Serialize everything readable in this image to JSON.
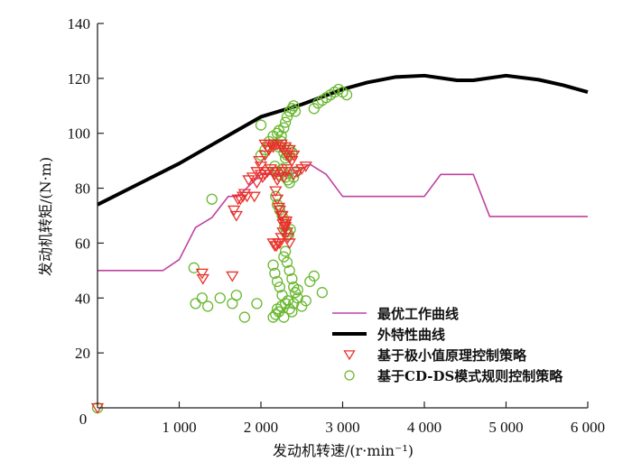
{
  "chart_data": {
    "type": "scatter",
    "title": "",
    "xlabel": "发动机转速/(r·min⁻¹)",
    "ylabel": "发动机转矩/(N·m)",
    "xlim": [
      0,
      6000
    ],
    "ylim": [
      0,
      140
    ],
    "x_ticks": [
      1000,
      2000,
      3000,
      4000,
      5000,
      6000
    ],
    "x_tick_labels": [
      "1 000",
      "2 000",
      "3 000",
      "4 000",
      "5 000",
      "6 000"
    ],
    "origin_label": "0",
    "y_ticks": [
      20,
      40,
      60,
      80,
      100,
      120,
      140
    ],
    "y_tick_labels": [
      "20",
      "40",
      "60",
      "80",
      "100",
      "120",
      "140"
    ],
    "grid": false,
    "legend_position": "bottom-right",
    "colors": {
      "optimal": "#c040a0",
      "external": "#000000",
      "min_principle": "#e8302a",
      "cdds": "#6ab830"
    },
    "series": [
      {
        "name": "最优工作曲线",
        "kind": "line",
        "color_key": "optimal",
        "x": [
          0,
          800,
          1000,
          1200,
          1400,
          1600,
          1720,
          2000,
          2380,
          2600,
          2800,
          3000,
          4000,
          4200,
          4600,
          4800,
          6000
        ],
        "y": [
          50,
          50,
          54,
          65.7,
          69.3,
          77,
          77,
          85,
          85,
          88.7,
          85,
          77,
          77,
          85,
          85,
          69.7,
          69.7
        ]
      },
      {
        "name": "外特性曲线",
        "kind": "line",
        "color_key": "external",
        "x": [
          0,
          500,
          1000,
          1500,
          2000,
          2500,
          3000,
          3300,
          3650,
          4000,
          4400,
          4600,
          5000,
          5400,
          5700,
          6000
        ],
        "y": [
          74,
          81.5,
          89,
          97.5,
          106,
          110.5,
          116,
          118.5,
          120.5,
          121,
          119.3,
          119.3,
          121,
          119.5,
          117.5,
          115
        ]
      },
      {
        "name": "基于极小值原理控制策略",
        "kind": "scatter",
        "marker": "triangle-down",
        "color_key": "min_principle",
        "x": [
          0,
          1280,
          1290,
          1650,
          1670,
          1700,
          1720,
          1750,
          1780,
          1800,
          1830,
          1850,
          1900,
          1950,
          2000,
          1980,
          2050,
          2100,
          2150,
          2200,
          2250,
          2300,
          2350,
          2400,
          2050,
          2080,
          2100,
          2120,
          2150,
          2200,
          2250,
          2280,
          2300,
          2320,
          2350,
          2380,
          1920,
          1950,
          2000,
          2020,
          2050,
          2080,
          2120,
          2150,
          2170,
          2200,
          2220,
          2250,
          2280,
          2300,
          2320,
          2400,
          2450,
          2500,
          2550,
          2180,
          2200,
          2220,
          2250,
          2270,
          2280,
          2300,
          2320,
          2330,
          2350,
          2150,
          2170,
          2190,
          2210,
          2230,
          2250,
          2270,
          2290,
          2310,
          2230,
          2260,
          2280,
          2300
        ],
        "y": [
          0,
          49,
          47,
          48,
          72,
          70,
          76,
          76,
          77,
          78,
          77,
          83,
          84,
          86,
          88,
          90,
          92,
          94,
          95,
          96,
          96,
          95,
          94,
          92,
          96,
          95,
          94,
          96,
          96,
          96,
          95,
          94,
          93,
          92,
          91,
          90,
          77,
          82,
          85,
          84,
          85,
          86,
          87,
          86,
          85,
          83,
          84,
          86,
          84,
          86,
          87,
          85,
          86,
          87,
          88,
          79,
          76,
          73,
          70,
          67,
          68,
          66,
          64,
          62,
          60,
          60,
          59,
          59,
          60,
          60,
          62,
          64,
          66,
          68,
          72,
          70,
          68,
          67
        ]
      },
      {
        "name": "基于CD-DS模式规则控制策略",
        "kind": "scatter",
        "marker": "circle",
        "color_key": "cdds",
        "x": [
          0,
          1400,
          1180,
          1200,
          1280,
          1350,
          1500,
          1650,
          1700,
          1800,
          1950,
          2000,
          2150,
          2180,
          2200,
          2220,
          2250,
          2280,
          2300,
          2330,
          2350,
          2380,
          2400,
          2450,
          2500,
          2550,
          2600,
          2650,
          2750,
          2150,
          2170,
          2200,
          2230,
          2260,
          2280,
          2300,
          2320,
          2350,
          2380,
          2400,
          2420,
          2450,
          2200,
          2220,
          2250,
          2280,
          2300,
          2320,
          2350,
          2380,
          2400,
          2420,
          2650,
          2700,
          2750,
          2800,
          2850,
          2900,
          2950,
          3000,
          3050,
          2000,
          2050,
          2100,
          2150,
          2180,
          2220,
          2250,
          2280,
          2300,
          2320,
          2350,
          2380,
          2170,
          2200,
          2230,
          2260,
          2300,
          2330,
          2350,
          2400,
          2430,
          2180,
          2200,
          2230,
          2260,
          2290,
          2310,
          2340,
          2360
        ],
        "y": [
          0,
          76,
          51,
          38,
          40,
          37,
          40,
          38,
          41,
          33,
          38,
          103,
          33,
          34,
          36,
          35,
          37,
          33,
          38,
          39,
          36,
          35,
          38,
          43,
          37,
          39,
          46,
          48,
          42,
          52,
          49,
          46,
          44,
          41,
          55,
          57,
          53,
          50,
          47,
          44,
          42,
          40,
          100,
          101,
          99,
          102,
          104,
          106,
          108,
          109,
          110,
          108,
          109,
          111,
          112,
          113,
          114,
          115,
          116,
          115,
          114,
          92,
          94,
          97,
          99,
          96,
          95,
          97,
          93,
          91,
          92,
          94,
          93,
          88,
          86,
          85,
          87,
          84,
          83,
          82,
          84,
          86,
          77,
          74,
          72,
          70,
          66,
          64,
          63,
          65
        ]
      }
    ]
  }
}
